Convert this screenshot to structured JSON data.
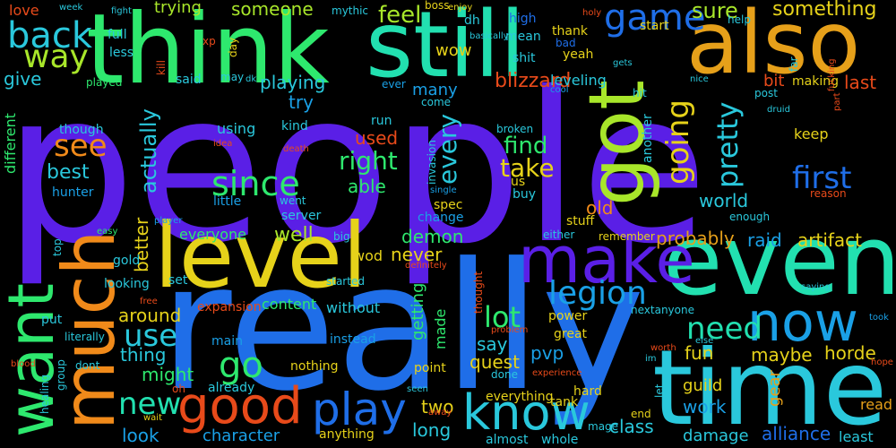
{
  "background": "#000000",
  "palette": {
    "violet": "#5a1fe6",
    "blue": "#1f6ee8",
    "cyan": "#2ac8dc",
    "teal": "#22e0b0",
    "green": "#2ee86e",
    "lime": "#a8e62a",
    "yellow": "#e6d21a",
    "orange": "#f08a1a",
    "red": "#e84a1a",
    "indigo": "#3a3ad8",
    "sky": "#1aa0e6"
  },
  "words": [
    {
      "text": "people",
      "color": "#5a1fe6"
    },
    {
      "text": "really",
      "color": "#1f6ee8"
    },
    {
      "text": "think",
      "color": "#2ee86e"
    },
    {
      "text": "still",
      "color": "#22e0b0"
    },
    {
      "text": "also",
      "color": "#e6a01a"
    },
    {
      "text": "time",
      "color": "#2ac8dc"
    },
    {
      "text": "even",
      "color": "#22e0b0"
    },
    {
      "text": "level",
      "color": "#e6d21a"
    },
    {
      "text": "much",
      "color": "#f08a1a"
    },
    {
      "text": "want",
      "color": "#2ee86e"
    },
    {
      "text": "make",
      "color": "#5a1fe6"
    },
    {
      "text": "got",
      "color": "#a8e62a"
    },
    {
      "text": "now",
      "color": "#1aa0e6"
    },
    {
      "text": "know",
      "color": "#2ac8dc"
    },
    {
      "text": "play",
      "color": "#1f6ee8"
    },
    {
      "text": "good",
      "color": "#e84a1a"
    },
    {
      "text": "game",
      "color": "#1f6ee8"
    },
    {
      "text": "back",
      "color": "#2ac8dc"
    },
    {
      "text": "way",
      "color": "#a8e62a"
    },
    {
      "text": "going",
      "color": "#e6d21a"
    },
    {
      "text": "pretty",
      "color": "#2ac8dc"
    },
    {
      "text": "legion",
      "color": "#1aa0e6"
    },
    {
      "text": "since",
      "color": "#2ee86e"
    },
    {
      "text": "first",
      "color": "#1f6ee8"
    },
    {
      "text": "see",
      "color": "#f08a1a"
    },
    {
      "text": "use",
      "color": "#2ac8dc"
    },
    {
      "text": "go",
      "color": "#2ee86e"
    },
    {
      "text": "new",
      "color": "#22e0b0"
    },
    {
      "text": "need",
      "color": "#22e0b0"
    },
    {
      "text": "lot",
      "color": "#2ee86e"
    },
    {
      "text": "right",
      "color": "#2ee86e"
    },
    {
      "text": "actually",
      "color": "#2ac8dc"
    },
    {
      "text": "every",
      "color": "#2ac8dc"
    },
    {
      "text": "take",
      "color": "#e6d21a"
    },
    {
      "text": "find",
      "color": "#2ee86e"
    },
    {
      "text": "feel",
      "color": "#a8e62a"
    },
    {
      "text": "sure",
      "color": "#a8e62a"
    },
    {
      "text": "something",
      "color": "#e6d21a"
    },
    {
      "text": "someone",
      "color": "#a8e62a"
    },
    {
      "text": "trying",
      "color": "#a8e62a"
    },
    {
      "text": "love",
      "color": "#e84a1a"
    },
    {
      "text": "wow",
      "color": "#e6d21a"
    },
    {
      "text": "blizzard",
      "color": "#e84a1a"
    },
    {
      "text": "give",
      "color": "#2ac8dc"
    },
    {
      "text": "best",
      "color": "#2ac8dc"
    },
    {
      "text": "playing",
      "color": "#2ac8dc"
    },
    {
      "text": "many",
      "color": "#1aa0e6"
    },
    {
      "text": "try",
      "color": "#1aa0e6"
    },
    {
      "text": "used",
      "color": "#e84a1a"
    },
    {
      "text": "able",
      "color": "#2ee86e"
    },
    {
      "text": "old",
      "color": "#f08a1a"
    },
    {
      "text": "world",
      "color": "#2ac8dc"
    },
    {
      "text": "raid",
      "color": "#1aa0e6"
    },
    {
      "text": "artifact",
      "color": "#e6d21a"
    },
    {
      "text": "probably",
      "color": "#e6a01a"
    },
    {
      "text": "demon",
      "color": "#2ee86e"
    },
    {
      "text": "never",
      "color": "#e6d21a"
    },
    {
      "text": "well",
      "color": "#a8e62a"
    },
    {
      "text": "around",
      "color": "#e6d21a"
    },
    {
      "text": "better",
      "color": "#e6d21a"
    },
    {
      "text": "thing",
      "color": "#2ac8dc"
    },
    {
      "text": "might",
      "color": "#2ee86e"
    },
    {
      "text": "say",
      "color": "#2ac8dc"
    },
    {
      "text": "quest",
      "color": "#e6d21a"
    },
    {
      "text": "pvp",
      "color": "#1aa0e6"
    },
    {
      "text": "fun",
      "color": "#e6d21a"
    },
    {
      "text": "maybe",
      "color": "#e6d21a"
    },
    {
      "text": "horde",
      "color": "#e6d21a"
    },
    {
      "text": "last",
      "color": "#e84a1a"
    },
    {
      "text": "bit",
      "color": "#e84a1a"
    },
    {
      "text": "leveling",
      "color": "#2ac8dc"
    },
    {
      "text": "look",
      "color": "#1aa0e6"
    },
    {
      "text": "character",
      "color": "#1aa0e6"
    },
    {
      "text": "alliance",
      "color": "#1f6ee8"
    },
    {
      "text": "damage",
      "color": "#2ac8dc"
    },
    {
      "text": "class",
      "color": "#2ac8dc"
    },
    {
      "text": "work",
      "color": "#1aa0e6"
    },
    {
      "text": "guild",
      "color": "#e6d21a"
    },
    {
      "text": "gear",
      "color": "#e6a01a"
    },
    {
      "text": "long",
      "color": "#2ac8dc"
    },
    {
      "text": "two",
      "color": "#e6d21a"
    },
    {
      "text": "getting",
      "color": "#2ee86e"
    },
    {
      "text": "made",
      "color": "#2ee86e"
    },
    {
      "text": "content",
      "color": "#2ee86e"
    },
    {
      "text": "without",
      "color": "#2ac8dc"
    },
    {
      "text": "wod",
      "color": "#e6d21a"
    },
    {
      "text": "everyone",
      "color": "#2ee86e"
    },
    {
      "text": "keep",
      "color": "#e6d21a"
    },
    {
      "text": "least",
      "color": "#2ac8dc"
    },
    {
      "text": "read",
      "color": "#e6a01a"
    },
    {
      "text": "different",
      "color": "#2ee86e"
    },
    {
      "text": "hunter",
      "color": "#1aa0e6"
    },
    {
      "text": "though",
      "color": "#2ac8dc"
    },
    {
      "text": "played",
      "color": "#2ee86e"
    },
    {
      "text": "said",
      "color": "#2ac8dc"
    },
    {
      "text": "using",
      "color": "#2ac8dc"
    },
    {
      "text": "kind",
      "color": "#2ac8dc"
    },
    {
      "text": "full",
      "color": "#2ac8dc"
    },
    {
      "text": "less",
      "color": "#2ac8dc"
    },
    {
      "text": "start",
      "color": "#e6d21a"
    },
    {
      "text": "thank",
      "color": "#e6d21a"
    },
    {
      "text": "yeah",
      "color": "#e6d21a"
    },
    {
      "text": "mean",
      "color": "#2ac8dc"
    },
    {
      "text": "high",
      "color": "#1f6ee8"
    },
    {
      "text": "shit",
      "color": "#2ac8dc"
    },
    {
      "text": "dh",
      "color": "#2ac8dc"
    },
    {
      "text": "mythic",
      "color": "#2ac8dc"
    },
    {
      "text": "boss",
      "color": "#e6d21a"
    },
    {
      "text": "broken",
      "color": "#2ac8dc"
    },
    {
      "text": "run",
      "color": "#2ac8dc"
    },
    {
      "text": "come",
      "color": "#2ac8dc"
    },
    {
      "text": "another",
      "color": "#2ac8dc"
    },
    {
      "text": "us",
      "color": "#e6d21a"
    },
    {
      "text": "buy",
      "color": "#2ac8dc"
    },
    {
      "text": "spec",
      "color": "#e6d21a"
    },
    {
      "text": "change",
      "color": "#1aa0e6"
    },
    {
      "text": "went",
      "color": "#2ac8dc"
    },
    {
      "text": "server",
      "color": "#2ac8dc"
    },
    {
      "text": "little",
      "color": "#1aa0e6"
    },
    {
      "text": "stuff",
      "color": "#e6d21a"
    },
    {
      "text": "either",
      "color": "#2ac8dc"
    },
    {
      "text": "remember",
      "color": "#e6d21a"
    },
    {
      "text": "big",
      "color": "#2ac8dc"
    },
    {
      "text": "gold",
      "color": "#2ac8dc"
    },
    {
      "text": "looking",
      "color": "#2ac8dc"
    },
    {
      "text": "set",
      "color": "#2ac8dc"
    },
    {
      "text": "started",
      "color": "#2ac8dc"
    },
    {
      "text": "expansion",
      "color": "#e84a1a"
    },
    {
      "text": "main",
      "color": "#1aa0e6"
    },
    {
      "text": "instead",
      "color": "#1aa0e6"
    },
    {
      "text": "nothing",
      "color": "#e6d21a"
    },
    {
      "text": "point",
      "color": "#e6d21a"
    },
    {
      "text": "power",
      "color": "#e6d21a"
    },
    {
      "text": "great",
      "color": "#e6d21a"
    },
    {
      "text": "nextanyone",
      "color": "#2ac8dc"
    },
    {
      "text": "already",
      "color": "#2ac8dc"
    },
    {
      "text": "hard",
      "color": "#e6d21a"
    },
    {
      "text": "tank",
      "color": "#e6d21a"
    },
    {
      "text": "mage",
      "color": "#2ac8dc"
    },
    {
      "text": "end",
      "color": "#e6d21a"
    },
    {
      "text": "everything",
      "color": "#e6d21a"
    },
    {
      "text": "almost",
      "color": "#2ac8dc"
    },
    {
      "text": "whole",
      "color": "#2ac8dc"
    },
    {
      "text": "anything",
      "color": "#e6d21a"
    },
    {
      "text": "put",
      "color": "#2ac8dc"
    },
    {
      "text": "literally",
      "color": "#2ac8dc"
    },
    {
      "text": "dont",
      "color": "#2ac8dc"
    },
    {
      "text": "healing",
      "color": "#2ac8dc"
    },
    {
      "text": "group",
      "color": "#2ac8dc"
    },
    {
      "text": "blood",
      "color": "#e84a1a"
    },
    {
      "text": "oh",
      "color": "#e84a1a"
    },
    {
      "text": "wait",
      "color": "#e6d21a"
    },
    {
      "text": "seen",
      "color": "#2ac8dc"
    },
    {
      "text": "away",
      "color": "#e84a1a"
    },
    {
      "text": "done",
      "color": "#2ac8dc"
    },
    {
      "text": "experience",
      "color": "#e84a1a"
    },
    {
      "text": "problem",
      "color": "#e84a1a"
    },
    {
      "text": "thought",
      "color": "#e84a1a"
    },
    {
      "text": "definitely",
      "color": "#e84a1a"
    },
    {
      "text": "free",
      "color": "#e84a1a"
    },
    {
      "text": "easy",
      "color": "#2ee86e"
    },
    {
      "text": "top",
      "color": "#2ac8dc"
    },
    {
      "text": "player",
      "color": "#1aa0e6"
    },
    {
      "text": "single",
      "color": "#1aa0e6"
    },
    {
      "text": "invasion",
      "color": "#2ac8dc"
    },
    {
      "text": "death",
      "color": "#e84a1a"
    },
    {
      "text": "idea",
      "color": "#e84a1a"
    },
    {
      "text": "cool",
      "color": "#1aa0e6"
    },
    {
      "text": "hit",
      "color": "#2ac8dc"
    },
    {
      "text": "nice",
      "color": "#2ac8dc"
    },
    {
      "text": "druid",
      "color": "#2ac8dc"
    },
    {
      "text": "post",
      "color": "#2ac8dc"
    },
    {
      "text": "making",
      "color": "#e6d21a"
    },
    {
      "text": "part",
      "color": "#e84a1a"
    },
    {
      "text": "far",
      "color": "#2ac8dc"
    },
    {
      "text": "help",
      "color": "#2ac8dc"
    },
    {
      "text": "gets",
      "color": "#2ac8dc"
    },
    {
      "text": "fucking",
      "color": "#e84a1a"
    },
    {
      "text": "holy",
      "color": "#e84a1a"
    },
    {
      "text": "basically",
      "color": "#2ac8dc"
    },
    {
      "text": "enjoy",
      "color": "#e6d21a"
    },
    {
      "text": "fight",
      "color": "#2ac8dc"
    },
    {
      "text": "week",
      "color": "#2ac8dc"
    },
    {
      "text": "xp",
      "color": "#e84a1a"
    },
    {
      "text": "day",
      "color": "#e6d21a"
    },
    {
      "text": "kill",
      "color": "#e84a1a"
    },
    {
      "text": "may",
      "color": "#2ac8dc"
    },
    {
      "text": "dk",
      "color": "#2ac8dc"
    },
    {
      "text": "ever",
      "color": "#1aa0e6"
    },
    {
      "text": "bad",
      "color": "#1f6ee8"
    },
    {
      "text": "reason",
      "color": "#e84a1a"
    },
    {
      "text": "enough",
      "color": "#2ac8dc"
    },
    {
      "text": "saying",
      "color": "#2ac8dc"
    },
    {
      "text": "took",
      "color": "#1aa0e6"
    },
    {
      "text": "hope",
      "color": "#e84a1a"
    },
    {
      "text": "else",
      "color": "#2ac8dc"
    },
    {
      "text": "worth",
      "color": "#e84a1a"
    },
    {
      "text": "im",
      "color": "#2ac8dc"
    },
    {
      "text": "let",
      "color": "#2ac8dc"
    }
  ]
}
